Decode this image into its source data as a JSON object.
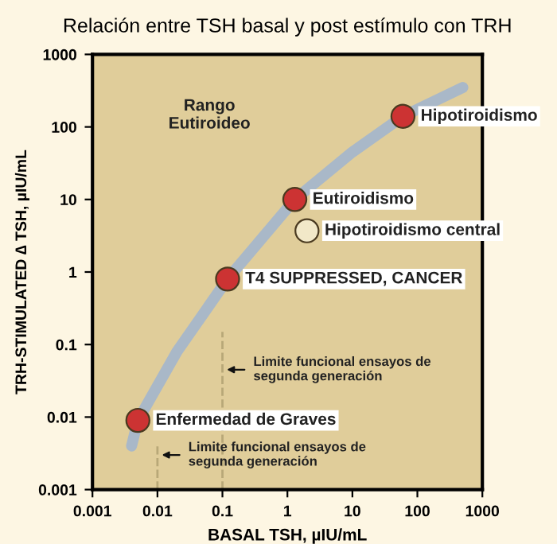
{
  "chart_data": {
    "type": "scatter",
    "title": "Relación entre TSH basal y post estímulo con TRH",
    "xlabel": "BASAL TSH, µIU/mL",
    "ylabel": "TRH-STIMULATED ∆ TSH, µIU/mL",
    "log": "xy",
    "xlim": [
      0.001,
      1000
    ],
    "ylim": [
      0.001,
      1000
    ],
    "xticks": [
      0.001,
      0.01,
      0.1,
      1,
      10,
      100,
      1000
    ],
    "yticks": [
      0.001,
      0.01,
      0.1,
      1,
      10,
      100,
      1000
    ],
    "grid": false,
    "marker": "circle",
    "series": [
      {
        "type": "line",
        "color": "#a9b8c8",
        "marker": "none",
        "x": [
          0.004,
          0.005,
          0.02,
          0.12,
          1.3,
          10,
          60,
          500
        ],
        "values": [
          0.004,
          0.009,
          0.08,
          0.8,
          10,
          45,
          140,
          350
        ]
      },
      {
        "type": "line",
        "color": "#b8a878",
        "marker": "none",
        "line_style": "dashed",
        "x": [
          0.1,
          0.1
        ],
        "values": [
          0.001,
          0.15
        ]
      },
      {
        "type": "line",
        "color": "#b8a878",
        "marker": "none",
        "line_style": "dashed",
        "x": [
          0.01,
          0.01
        ],
        "values": [
          0.001,
          0.004
        ]
      },
      {
        "name": "Enfermedad de Graves",
        "color": "#cc3333",
        "x": [
          0.005
        ],
        "values": [
          0.009
        ]
      },
      {
        "name": "T4 SUPPRESSED, CANCER",
        "color": "#cc3333",
        "x": [
          0.12
        ],
        "values": [
          0.8
        ]
      },
      {
        "name": "Eutiroidismo",
        "color": "#cc3333",
        "x": [
          1.3
        ],
        "values": [
          10
        ]
      },
      {
        "name": "Hipotiroidismo central",
        "color": "#f2e8c8",
        "x": [
          2
        ],
        "values": [
          3.7
        ]
      },
      {
        "name": "Hipotiroidismo",
        "color": "#cc3333",
        "x": [
          60
        ],
        "values": [
          140
        ]
      }
    ],
    "annotations": [
      "Rango\nEutiroideo",
      {
        "text": "Limite funcional ensayos de\nsegunda generación",
        "x": 0.1,
        "y": 0.045
      },
      {
        "text": "Limite funcional ensayos de\nsegunda generación",
        "x": 0.01,
        "y": 0.003
      }
    ]
  }
}
